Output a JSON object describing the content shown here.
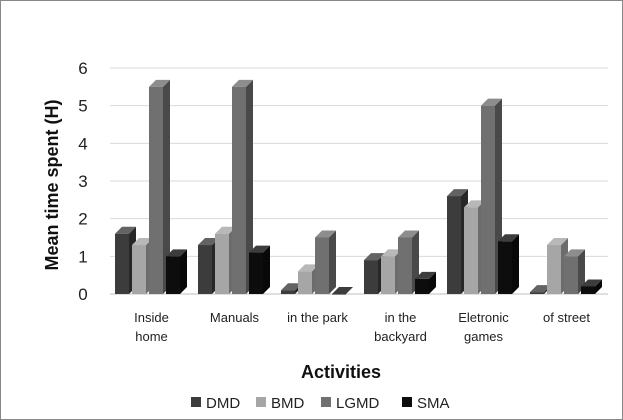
{
  "chart_data": {
    "type": "bar",
    "title": "",
    "xlabel": "Activities",
    "ylabel": "Mean time spent (H)",
    "ylim": [
      0,
      6
    ],
    "yticks": [
      0,
      1,
      2,
      3,
      4,
      5,
      6
    ],
    "grid": true,
    "legend_position": "bottom",
    "categories": [
      [
        "Inside",
        "home"
      ],
      [
        "Manuals"
      ],
      [
        "in the park"
      ],
      [
        "in the",
        "backyard"
      ],
      [
        "Eletronic",
        "games"
      ],
      [
        "of street"
      ]
    ],
    "series": [
      {
        "name": "DMD",
        "color": "#3c3c3c",
        "values": [
          1.6,
          1.3,
          0.1,
          0.9,
          2.6,
          0.05
        ]
      },
      {
        "name": "BMD",
        "color": "#a6a6a6",
        "values": [
          1.3,
          1.6,
          0.6,
          1.0,
          2.3,
          1.3
        ]
      },
      {
        "name": "LGMD",
        "color": "#707070",
        "values": [
          5.5,
          5.5,
          1.5,
          1.5,
          5.0,
          1.0
        ]
      },
      {
        "name": "SMA",
        "color": "#0d0d0d",
        "values": [
          1.0,
          1.1,
          0.0,
          0.4,
          1.4,
          0.2
        ]
      }
    ]
  }
}
